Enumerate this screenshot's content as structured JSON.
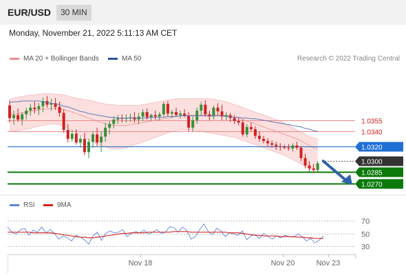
{
  "header": {
    "symbol": "EUR/USD",
    "timeframe": "30 MIN"
  },
  "timestamp": "Monday, November 21, 2022 5:11:13 AM CET",
  "credit": "Research © 2022 Trading Central",
  "legend": {
    "bollinger": "MA 20 + Bollinger Bands",
    "ma50": "MA 50",
    "rsi": "RSI",
    "rsi_ma": "9MA"
  },
  "colors": {
    "up": "#3a8f3a",
    "down": "#d42020",
    "green_level": "#0a7a0a",
    "blue_level": "#1565c0",
    "red_level": "#e8888a",
    "band_fill": "#fbd9d9",
    "ma50": "#5b7bb6",
    "rsi": "#6b8fd8",
    "rsi_ma": "#d23030"
  },
  "chart_data": [
    {
      "type": "candlestick",
      "title": "EUR/USD",
      "timeframe": "30 MIN",
      "x_ticks": [
        "Nov 18",
        "Nov 20",
        "Nov 23"
      ],
      "ylim": [
        1.0265,
        1.0405
      ],
      "candles_ohlc": [
        [
          1.0375,
          1.0382,
          1.0352,
          1.0358
        ],
        [
          1.0358,
          1.0368,
          1.0349,
          1.0362
        ],
        [
          1.0362,
          1.0371,
          1.0353,
          1.0356
        ],
        [
          1.0356,
          1.0366,
          1.0348,
          1.0363
        ],
        [
          1.0363,
          1.0372,
          1.0356,
          1.0368
        ],
        [
          1.0368,
          1.0377,
          1.0361,
          1.0372
        ],
        [
          1.0372,
          1.038,
          1.0364,
          1.037
        ],
        [
          1.037,
          1.0378,
          1.0362,
          1.0374
        ],
        [
          1.0374,
          1.0386,
          1.0366,
          1.0381
        ],
        [
          1.0381,
          1.0388,
          1.0372,
          1.0376
        ],
        [
          1.0376,
          1.0384,
          1.0368,
          1.0378
        ],
        [
          1.0378,
          1.0385,
          1.0369,
          1.0373
        ],
        [
          1.0373,
          1.038,
          1.036,
          1.0365
        ],
        [
          1.0365,
          1.037,
          1.0338,
          1.0342
        ],
        [
          1.0342,
          1.035,
          1.0325,
          1.033
        ],
        [
          1.033,
          1.0342,
          1.0326,
          1.0337
        ],
        [
          1.0337,
          1.0343,
          1.0322,
          1.0325
        ],
        [
          1.0325,
          1.0334,
          1.0318,
          1.033
        ],
        [
          1.033,
          1.0338,
          1.0308,
          1.0312
        ],
        [
          1.0312,
          1.033,
          1.0304,
          1.0326
        ],
        [
          1.0326,
          1.034,
          1.0318,
          1.0336
        ],
        [
          1.0336,
          1.0345,
          1.032,
          1.0325
        ],
        [
          1.0325,
          1.034,
          1.0312,
          1.0333
        ],
        [
          1.0333,
          1.0352,
          1.0326,
          1.0345
        ],
        [
          1.0345,
          1.0354,
          1.0336,
          1.035
        ],
        [
          1.035,
          1.036,
          1.0344,
          1.0356
        ],
        [
          1.0356,
          1.0362,
          1.035,
          1.0358
        ],
        [
          1.0358,
          1.0363,
          1.0352,
          1.0357
        ],
        [
          1.0357,
          1.0363,
          1.0352,
          1.0358
        ],
        [
          1.0358,
          1.0364,
          1.0353,
          1.0359
        ],
        [
          1.0359,
          1.0366,
          1.0352,
          1.0356
        ],
        [
          1.0356,
          1.0365,
          1.035,
          1.036
        ],
        [
          1.036,
          1.037,
          1.0354,
          1.0366
        ],
        [
          1.0366,
          1.0371,
          1.0356,
          1.0359
        ],
        [
          1.0359,
          1.0364,
          1.0354,
          1.0362
        ],
        [
          1.0362,
          1.0368,
          1.0356,
          1.036
        ],
        [
          1.036,
          1.0366,
          1.0355,
          1.0363
        ],
        [
          1.0363,
          1.038,
          1.036,
          1.0377
        ],
        [
          1.0377,
          1.0381,
          1.036,
          1.0364
        ],
        [
          1.0364,
          1.0369,
          1.0358,
          1.0366
        ],
        [
          1.0366,
          1.0372,
          1.036,
          1.0362
        ],
        [
          1.0362,
          1.0368,
          1.0357,
          1.0364
        ],
        [
          1.0364,
          1.037,
          1.0359,
          1.0361
        ],
        [
          1.0361,
          1.0366,
          1.034,
          1.0345
        ],
        [
          1.0345,
          1.036,
          1.034,
          1.0355
        ],
        [
          1.0355,
          1.0372,
          1.035,
          1.0368
        ],
        [
          1.0368,
          1.038,
          1.0362,
          1.0376
        ],
        [
          1.0376,
          1.0382,
          1.036,
          1.0363
        ],
        [
          1.0363,
          1.0368,
          1.0355,
          1.036
        ],
        [
          1.036,
          1.0375,
          1.0356,
          1.0372
        ],
        [
          1.0372,
          1.0378,
          1.0362,
          1.0367
        ],
        [
          1.0367,
          1.0376,
          1.0355,
          1.036
        ],
        [
          1.036,
          1.0366,
          1.0355,
          1.0362
        ],
        [
          1.0362,
          1.0365,
          1.0353,
          1.0358
        ],
        [
          1.0358,
          1.0362,
          1.035,
          1.0354
        ],
        [
          1.0354,
          1.0358,
          1.0348,
          1.0352
        ],
        [
          1.0352,
          1.0356,
          1.0333,
          1.0336
        ],
        [
          1.0336,
          1.035,
          1.0332,
          1.0346
        ],
        [
          1.0346,
          1.0352,
          1.034,
          1.0343
        ],
        [
          1.0343,
          1.0347,
          1.033,
          1.0334
        ],
        [
          1.0334,
          1.034,
          1.0326,
          1.033
        ],
        [
          1.033,
          1.0334,
          1.0324,
          1.0327
        ],
        [
          1.0327,
          1.0331,
          1.032,
          1.0324
        ],
        [
          1.0324,
          1.0328,
          1.0318,
          1.0322
        ],
        [
          1.0322,
          1.0326,
          1.0315,
          1.032
        ],
        [
          1.032,
          1.0324,
          1.0314,
          1.0319
        ],
        [
          1.0319,
          1.0322,
          1.0316,
          1.0318
        ],
        [
          1.0318,
          1.0323,
          1.0314,
          1.0317
        ],
        [
          1.0317,
          1.0324,
          1.0313,
          1.0321
        ],
        [
          1.0321,
          1.0326,
          1.0315,
          1.0318
        ],
        [
          1.0318,
          1.032,
          1.03,
          1.0304
        ],
        [
          1.0304,
          1.031,
          1.029,
          1.0294
        ],
        [
          1.0294,
          1.03,
          1.0286,
          1.029
        ],
        [
          1.029,
          1.0296,
          1.0284,
          1.0288
        ],
        [
          1.0288,
          1.03,
          1.0285,
          1.0297
        ]
      ],
      "bollinger_band": {
        "upper": [
          1.0383,
          1.0385,
          1.0386,
          1.0387,
          1.0388,
          1.0389,
          1.0389,
          1.039,
          1.0391,
          1.0391,
          1.0391,
          1.039,
          1.039,
          1.0389,
          1.0388,
          1.0386,
          1.0385,
          1.0384,
          1.0383,
          1.0382,
          1.0381,
          1.0379,
          1.0378,
          1.0377,
          1.0376,
          1.0376,
          1.0375,
          1.0375,
          1.0375,
          1.0375,
          1.0375,
          1.0375,
          1.0376,
          1.0377,
          1.0378,
          1.0379,
          1.038,
          1.0381,
          1.0382,
          1.0383,
          1.0384,
          1.0384,
          1.0384,
          1.0384,
          1.0384,
          1.0384,
          1.0384,
          1.0384,
          1.0384,
          1.0383,
          1.0382,
          1.0381,
          1.038,
          1.0378,
          1.0376,
          1.0374,
          1.0372,
          1.037,
          1.0368,
          1.0366,
          1.0364,
          1.0362,
          1.036,
          1.0358,
          1.0356,
          1.0354,
          1.0351,
          1.0348,
          1.0345,
          1.0342,
          1.0339,
          1.0336,
          1.0333,
          1.0331,
          1.033
        ],
        "middle": [
          1.0362,
          1.0363,
          1.0364,
          1.0365,
          1.0366,
          1.0367,
          1.0368,
          1.0369,
          1.037,
          1.037,
          1.0371,
          1.0371,
          1.037,
          1.0369,
          1.0368,
          1.0366,
          1.0364,
          1.0362,
          1.036,
          1.0358,
          1.0356,
          1.0354,
          1.0352,
          1.035,
          1.0349,
          1.0348,
          1.0348,
          1.0348,
          1.0348,
          1.0349,
          1.035,
          1.0351,
          1.0352,
          1.0353,
          1.0354,
          1.0355,
          1.0356,
          1.0357,
          1.0358,
          1.0359,
          1.036,
          1.0361,
          1.0362,
          1.0362,
          1.0362,
          1.0362,
          1.0362,
          1.0362,
          1.0362,
          1.0362,
          1.0362,
          1.0362,
          1.0361,
          1.036,
          1.0359,
          1.0358,
          1.0356,
          1.0354,
          1.0352,
          1.035,
          1.0348,
          1.0346,
          1.0344,
          1.0342,
          1.034,
          1.0338,
          1.0336,
          1.0334,
          1.0332,
          1.033,
          1.0327,
          1.0324,
          1.0321,
          1.0318,
          1.0316
        ],
        "lower": [
          1.034,
          1.034,
          1.0341,
          1.0342,
          1.0343,
          1.0344,
          1.0346,
          1.0347,
          1.0348,
          1.0349,
          1.035,
          1.035,
          1.0349,
          1.0347,
          1.0344,
          1.0341,
          1.0338,
          1.0335,
          1.0332,
          1.0329,
          1.0326,
          1.0323,
          1.0321,
          1.0319,
          1.0317,
          1.0316,
          1.0316,
          1.0317,
          1.0318,
          1.032,
          1.0322,
          1.0324,
          1.0326,
          1.0328,
          1.033,
          1.0332,
          1.0334,
          1.0336,
          1.0338,
          1.034,
          1.0341,
          1.0342,
          1.0342,
          1.0342,
          1.0342,
          1.0341,
          1.034,
          1.0339,
          1.0338,
          1.0337,
          1.0336,
          1.0335,
          1.0334,
          1.0333,
          1.0332,
          1.033,
          1.0328,
          1.0326,
          1.0324,
          1.0322,
          1.032,
          1.0318,
          1.0316,
          1.0314,
          1.0312,
          1.031,
          1.0308,
          1.0305,
          1.0302,
          1.0299,
          1.0296,
          1.0293,
          1.029,
          1.0288,
          1.0287
        ]
      },
      "ma50": [
        1.0379,
        1.038,
        1.038,
        1.0381,
        1.0381,
        1.0381,
        1.0381,
        1.0381,
        1.038,
        1.0379,
        1.0378,
        1.0377,
        1.0376,
        1.0374,
        1.0373,
        1.0371,
        1.0369,
        1.0367,
        1.0366,
        1.0364,
        1.0363,
        1.0362,
        1.0361,
        1.036,
        1.0359,
        1.0359,
        1.0358,
        1.0358,
        1.0358,
        1.0358,
        1.0358,
        1.0358,
        1.0358,
        1.0358,
        1.0359,
        1.0359,
        1.0359,
        1.0359,
        1.036,
        1.036,
        1.036,
        1.0361,
        1.0361,
        1.0361,
        1.0361,
        1.0361,
        1.0361,
        1.0361,
        1.0361,
        1.0361,
        1.0361,
        1.0361,
        1.036,
        1.036,
        1.0359,
        1.0359,
        1.0358,
        1.0358,
        1.0357,
        1.0357,
        1.0356,
        1.0355,
        1.0354,
        1.0353,
        1.0352,
        1.0351,
        1.035,
        1.0349,
        1.0348,
        1.0347,
        1.0346,
        1.0344,
        1.0343,
        1.0341,
        1.034
      ],
      "levels": [
        {
          "value": 1.0355,
          "label": "1.0355",
          "style": "red"
        },
        {
          "value": 1.034,
          "label": "1.0340",
          "style": "red"
        },
        {
          "value": 1.032,
          "label": "1.0320",
          "style": "blue"
        },
        {
          "value": 1.03,
          "label": "1.0300",
          "style": "current"
        },
        {
          "value": 1.0285,
          "label": "1.0285",
          "style": "green"
        },
        {
          "value": 1.027,
          "label": "1.0270",
          "style": "green"
        }
      ],
      "forecast": {
        "from": 1.03,
        "to": 1.027,
        "direction": "down"
      }
    },
    {
      "type": "line",
      "title": "RSI",
      "ylim": [
        20,
        80
      ],
      "y_ticks": [
        70,
        50,
        30
      ],
      "series": [
        {
          "name": "RSI",
          "values": [
            60,
            52,
            49,
            56,
            58,
            47,
            55,
            52,
            60,
            51,
            56,
            50,
            41,
            46,
            43,
            38,
            47,
            44,
            40,
            33,
            46,
            52,
            39,
            50,
            54,
            51,
            52,
            56,
            45,
            50,
            53,
            51,
            55,
            49,
            52,
            56,
            50,
            52,
            61,
            59,
            52,
            60,
            54,
            41,
            45,
            56,
            65,
            53,
            48,
            58,
            54,
            45,
            51,
            49,
            47,
            54,
            40,
            46,
            48,
            42,
            50,
            45,
            41,
            46,
            43,
            47,
            45,
            44,
            49,
            45,
            38,
            42,
            35,
            39,
            46
          ]
        },
        {
          "name": "9MA",
          "values": [
            52,
            52,
            52,
            52,
            52,
            52,
            51,
            51,
            51,
            51,
            51,
            50,
            49,
            48,
            47,
            46,
            45,
            44,
            44,
            43,
            43,
            44,
            45,
            46,
            47,
            48,
            49,
            50,
            50,
            51,
            51,
            51,
            51,
            52,
            52,
            52,
            52,
            52,
            52,
            53,
            53,
            53,
            53,
            52,
            52,
            52,
            52,
            52,
            52,
            52,
            52,
            52,
            51,
            51,
            51,
            50,
            49,
            48,
            47,
            47,
            46,
            46,
            46,
            46,
            45,
            45,
            45,
            45,
            44,
            44,
            43,
            43,
            42,
            42,
            42
          ]
        }
      ],
      "x_ticks": [
        "Nov 18",
        "Nov 20",
        "Nov 23"
      ]
    }
  ]
}
